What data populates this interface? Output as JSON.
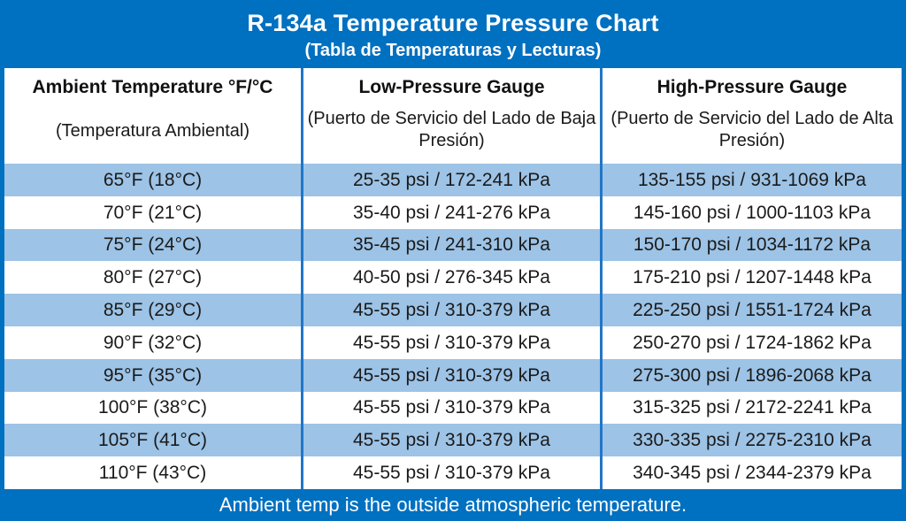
{
  "header": {
    "title": "R-134a Temperature Pressure Chart",
    "subtitle": "(Tabla de Temperaturas y Lecturas)"
  },
  "footer": {
    "note": "Ambient temp is the outside atmospheric temperature."
  },
  "colors": {
    "band_blue": "#0070C0",
    "row_alt_blue": "#9DC3E6",
    "row_white": "#FFFFFF",
    "grid_blue": "#2176C7",
    "text_dark": "#1A1A1A",
    "text_light": "#FFFFFF"
  },
  "chart_data": {
    "type": "table",
    "title": "R-134a Temperature Pressure Chart",
    "columns": [
      {
        "title": "Ambient Temperature °F/°C",
        "subtitle": "(Temperatura Ambiental)"
      },
      {
        "title": "Low-Pressure Gauge",
        "subtitle": "(Puerto de Servicio del Lado de Baja Presión)"
      },
      {
        "title": "High-Pressure Gauge",
        "subtitle": "(Puerto de Servicio del Lado de Alta Presión)"
      }
    ],
    "rows": [
      {
        "temp": "65°F (18°C)",
        "low": "25-35 psi / 172-241 kPa",
        "high": "135-155 psi / 931-1069 kPa"
      },
      {
        "temp": "70°F (21°C)",
        "low": "35-40 psi / 241-276 kPa",
        "high": "145-160 psi / 1000-1103 kPa"
      },
      {
        "temp": "75°F (24°C)",
        "low": "35-45 psi / 241-310 kPa",
        "high": "150-170 psi / 1034-1172 kPa"
      },
      {
        "temp": "80°F (27°C)",
        "low": "40-50 psi / 276-345 kPa",
        "high": "175-210 psi / 1207-1448 kPa"
      },
      {
        "temp": "85°F (29°C)",
        "low": "45-55 psi / 310-379 kPa",
        "high": "225-250 psi / 1551-1724 kPa"
      },
      {
        "temp": "90°F (32°C)",
        "low": "45-55 psi / 310-379 kPa",
        "high": "250-270 psi / 1724-1862 kPa"
      },
      {
        "temp": "95°F (35°C)",
        "low": "45-55 psi / 310-379 kPa",
        "high": "275-300 psi / 1896-2068 kPa"
      },
      {
        "temp": "100°F (38°C)",
        "low": "45-55 psi / 310-379 kPa",
        "high": "315-325 psi / 2172-2241 kPa"
      },
      {
        "temp": "105°F (41°C)",
        "low": "45-55 psi / 310-379 kPa",
        "high": "330-335 psi / 2275-2310 kPa"
      },
      {
        "temp": "110°F (43°C)",
        "low": "45-55 psi / 310-379 kPa",
        "high": "340-345 psi / 2344-2379 kPa"
      }
    ]
  }
}
